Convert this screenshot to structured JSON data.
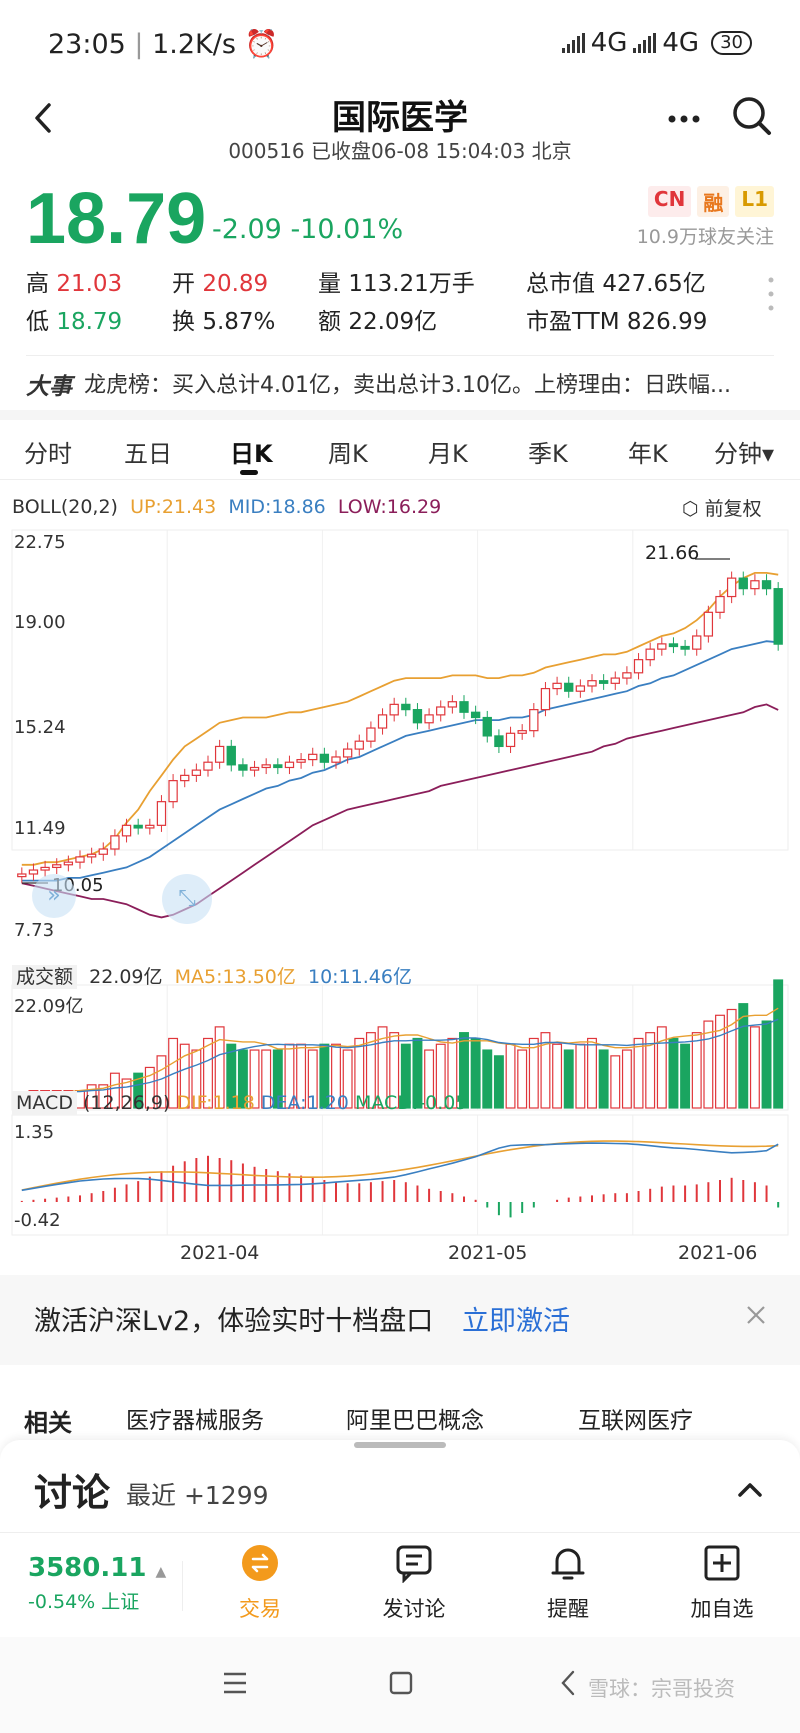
{
  "status": {
    "time": "23:05",
    "speed": "1.2K/s",
    "net1": "4G",
    "net2": "4G",
    "battery": "30"
  },
  "header": {
    "title": "国际医学",
    "subtitle": "000516 已收盘06-08 15:04:03 北京"
  },
  "quote": {
    "price": "18.79",
    "change": "-2.09 -10.01%",
    "badges": [
      "CN",
      "融",
      "L1"
    ],
    "followers": "10.9万球友关注",
    "stats": [
      [
        {
          "k": "高",
          "v": "21.03",
          "c": "red"
        },
        {
          "k": "开",
          "v": "20.89",
          "c": "red"
        },
        {
          "k": "量",
          "v": "113.21万手",
          "c": ""
        },
        {
          "k": "总市值",
          "v": "427.65亿",
          "c": ""
        }
      ],
      [
        {
          "k": "低",
          "v": "18.79",
          "c": "green"
        },
        {
          "k": "换",
          "v": "5.87%",
          "c": ""
        },
        {
          "k": "额",
          "v": "22.09亿",
          "c": ""
        },
        {
          "k": "市盈TTM",
          "v": "826.99",
          "c": ""
        }
      ]
    ]
  },
  "event": {
    "label": "大事",
    "text": "龙虎榜：买入总计4.01亿，卖出总计3.10亿。上榜理由：日跌幅..."
  },
  "tabs": [
    "分时",
    "五日",
    "日K",
    "周K",
    "月K",
    "季K",
    "年K",
    "分钟▾"
  ],
  "chart_meta": {
    "boll_label": "BOLL(20,2)",
    "boll_up": "UP:21.43",
    "boll_mid": "MID:18.86",
    "boll_low": "LOW:16.29",
    "adjust": "前复权",
    "price_ticks": [
      "22.75",
      "19.00",
      "15.24",
      "11.49",
      "7.73"
    ],
    "max_marker": "21.66",
    "min_marker": "10.05",
    "vol_label": "成交额",
    "vol_value": "22.09亿",
    "vol_ma5": "MA5:13.50亿",
    "vol_ma10": "10:11.46亿",
    "vol_tick": "22.09亿",
    "macd_label": "MACD",
    "macd_params": "(12,26,9)",
    "macd_dif": "DIF:1.18",
    "macd_dea": "DEA:1.20",
    "macd_val": "MACD:-0.05",
    "macd_ticks": [
      "1.35",
      "-0.42"
    ],
    "dates": [
      "2021-04",
      "2021-05",
      "2021-06"
    ],
    "colors": {
      "up": "#e0363b",
      "down": "#1aa560",
      "ma_orange": "#e8a032",
      "ma_blue": "#3a7fc1",
      "ma_purple": "#8b1e5a"
    }
  },
  "chart_data": {
    "type": "candlestick",
    "ylim": [
      7.73,
      22.75
    ],
    "close": [
      10.05,
      10.2,
      10.3,
      10.4,
      10.5,
      10.7,
      10.8,
      11.0,
      11.5,
      11.9,
      11.8,
      11.9,
      12.8,
      13.6,
      13.8,
      14.0,
      14.3,
      14.9,
      14.2,
      14.0,
      14.1,
      14.2,
      14.1,
      14.3,
      14.4,
      14.6,
      14.3,
      14.5,
      14.8,
      15.1,
      15.6,
      16.1,
      16.5,
      16.3,
      15.8,
      16.1,
      16.4,
      16.6,
      16.2,
      16.0,
      15.3,
      14.9,
      15.4,
      15.5,
      16.3,
      17.1,
      17.3,
      17.0,
      17.2,
      17.4,
      17.3,
      17.5,
      17.7,
      18.2,
      18.6,
      18.8,
      18.7,
      18.6,
      19.1,
      20.0,
      20.6,
      21.3,
      20.9,
      21.2,
      20.9,
      18.79
    ],
    "boll_up": [
      10.4,
      10.4,
      10.5,
      10.5,
      10.6,
      10.7,
      10.8,
      11.0,
      11.4,
      12.0,
      12.5,
      13.2,
      13.8,
      14.4,
      14.9,
      15.2,
      15.5,
      15.8,
      15.9,
      16.0,
      16.0,
      16.0,
      16.1,
      16.2,
      16.2,
      16.3,
      16.4,
      16.5,
      16.6,
      16.8,
      17.0,
      17.2,
      17.4,
      17.5,
      17.5,
      17.5,
      17.5,
      17.6,
      17.6,
      17.6,
      17.5,
      17.5,
      17.6,
      17.6,
      17.7,
      17.9,
      18.0,
      18.1,
      18.2,
      18.3,
      18.4,
      18.4,
      18.5,
      18.7,
      18.9,
      19.1,
      19.2,
      19.4,
      19.7,
      20.1,
      20.6,
      21.0,
      21.3,
      21.5,
      21.5,
      21.43
    ],
    "boll_mid": [
      9.8,
      9.8,
      9.8,
      9.8,
      9.9,
      9.9,
      10.0,
      10.1,
      10.2,
      10.3,
      10.5,
      10.7,
      11.0,
      11.3,
      11.6,
      11.9,
      12.2,
      12.5,
      12.7,
      12.9,
      13.1,
      13.3,
      13.4,
      13.6,
      13.7,
      13.9,
      14.0,
      14.2,
      14.4,
      14.5,
      14.7,
      14.9,
      15.1,
      15.3,
      15.4,
      15.5,
      15.6,
      15.7,
      15.8,
      15.9,
      15.9,
      15.9,
      16.0,
      16.0,
      16.1,
      16.3,
      16.4,
      16.5,
      16.6,
      16.7,
      16.8,
      16.9,
      17.0,
      17.2,
      17.3,
      17.5,
      17.6,
      17.8,
      18.0,
      18.2,
      18.4,
      18.6,
      18.7,
      18.8,
      18.9,
      18.86
    ],
    "boll_low": [
      9.7,
      9.6,
      9.5,
      9.4,
      9.3,
      9.2,
      9.1,
      9.1,
      9.0,
      8.9,
      8.7,
      8.5,
      8.4,
      8.5,
      8.7,
      8.9,
      9.2,
      9.5,
      9.8,
      10.1,
      10.4,
      10.7,
      11.0,
      11.3,
      11.6,
      11.9,
      12.1,
      12.3,
      12.5,
      12.6,
      12.7,
      12.8,
      12.9,
      13.0,
      13.1,
      13.2,
      13.4,
      13.5,
      13.6,
      13.7,
      13.8,
      13.9,
      14.0,
      14.1,
      14.2,
      14.3,
      14.4,
      14.5,
      14.6,
      14.7,
      14.9,
      15.0,
      15.2,
      15.3,
      15.4,
      15.5,
      15.6,
      15.7,
      15.8,
      15.9,
      16.0,
      16.1,
      16.2,
      16.4,
      16.5,
      16.29
    ],
    "volume": [
      2,
      3,
      3,
      3,
      3,
      3,
      4,
      4,
      6,
      5,
      6,
      7,
      9,
      12,
      11,
      10,
      12,
      14,
      11,
      10,
      10,
      10,
      10,
      11,
      11,
      10,
      11,
      11,
      10,
      12,
      13,
      14,
      13,
      11,
      12,
      10,
      11,
      12,
      13,
      12,
      10,
      9,
      11,
      10,
      12,
      13,
      11,
      10,
      11,
      12,
      10,
      9,
      10,
      12,
      13,
      14,
      12,
      11,
      13,
      15,
      16,
      17,
      18,
      14,
      15,
      22.09
    ],
    "macd": [
      0.01,
      0.02,
      0.03,
      0.04,
      0.05,
      0.06,
      0.08,
      0.1,
      0.13,
      0.16,
      0.19,
      0.23,
      0.28,
      0.33,
      0.37,
      0.4,
      0.42,
      0.4,
      0.38,
      0.35,
      0.32,
      0.3,
      0.28,
      0.26,
      0.24,
      0.22,
      0.2,
      0.18,
      0.17,
      0.17,
      0.18,
      0.19,
      0.2,
      0.18,
      0.15,
      0.12,
      0.1,
      0.08,
      0.05,
      0.02,
      -0.05,
      -0.12,
      -0.14,
      -0.1,
      -0.05,
      0.0,
      0.02,
      0.04,
      0.05,
      0.06,
      0.07,
      0.08,
      0.08,
      0.1,
      0.12,
      0.14,
      0.15,
      0.15,
      0.16,
      0.18,
      0.2,
      0.22,
      0.2,
      0.18,
      0.15,
      -0.05
    ]
  },
  "banner": {
    "text": "激活沪深Lv2，体验实时十档盘口",
    "link": "立即激活"
  },
  "related": {
    "label": "相关",
    "tags": [
      "医疗器械服务",
      "阿里巴巴概念",
      "互联网医疗"
    ]
  },
  "discuss": {
    "title": "讨论",
    "recent": "最近 +1299"
  },
  "index": {
    "value": "3580.11",
    "change": "-0.54% 上证"
  },
  "actions": [
    "交易",
    "发讨论",
    "提醒",
    "加自选"
  ],
  "watermark": "雪球：宗哥投资"
}
